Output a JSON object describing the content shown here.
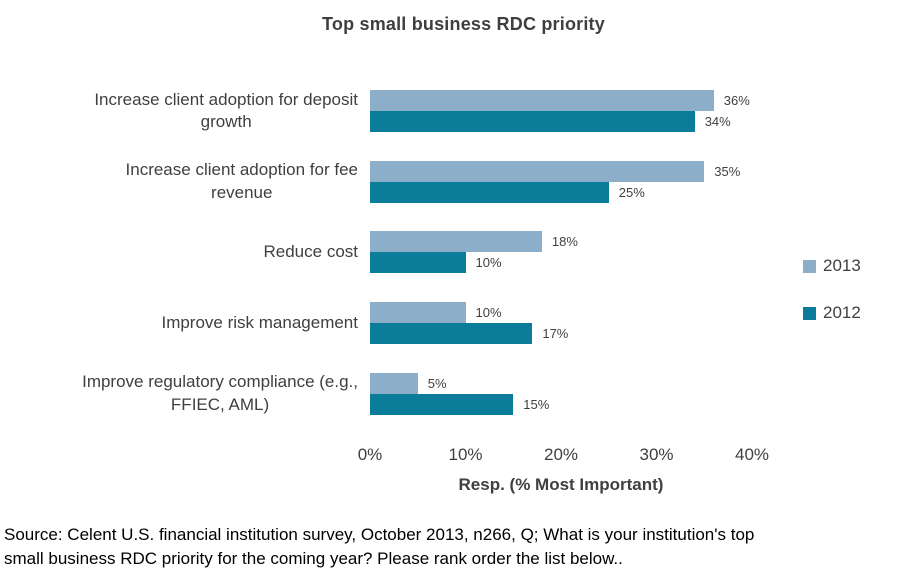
{
  "chart_data": {
    "type": "bar",
    "orientation": "horizontal",
    "title": "Top small business RDC priority",
    "categories": [
      "Increase client adoption for deposit\ngrowth",
      "Increase client adoption for fee\nrevenue",
      "Reduce cost",
      "Improve risk management",
      "Improve regulatory compliance (e.g.,\nFFIEC, AML)"
    ],
    "series": [
      {
        "name": "2013",
        "values": [
          36,
          35,
          18,
          10,
          5
        ],
        "color": "#8DAEC9"
      },
      {
        "name": "2012",
        "values": [
          34,
          25,
          10,
          17,
          15
        ],
        "color": "#0C7C9B"
      }
    ],
    "value_suffix": "%",
    "xlabel": "Resp. (% Most Important)",
    "xtick_labels": [
      "0%",
      "10%",
      "20%",
      "30%",
      "40%"
    ],
    "xlim": [
      0,
      40
    ],
    "grid": false,
    "legend_position": "right",
    "text_color": "#3F3F3F"
  },
  "source_note": "Source: Celent U.S. financial institution survey, October 2013, n266, Q; What is your institution's top\nsmall business RDC priority for the coming year? Please rank order the list below.."
}
